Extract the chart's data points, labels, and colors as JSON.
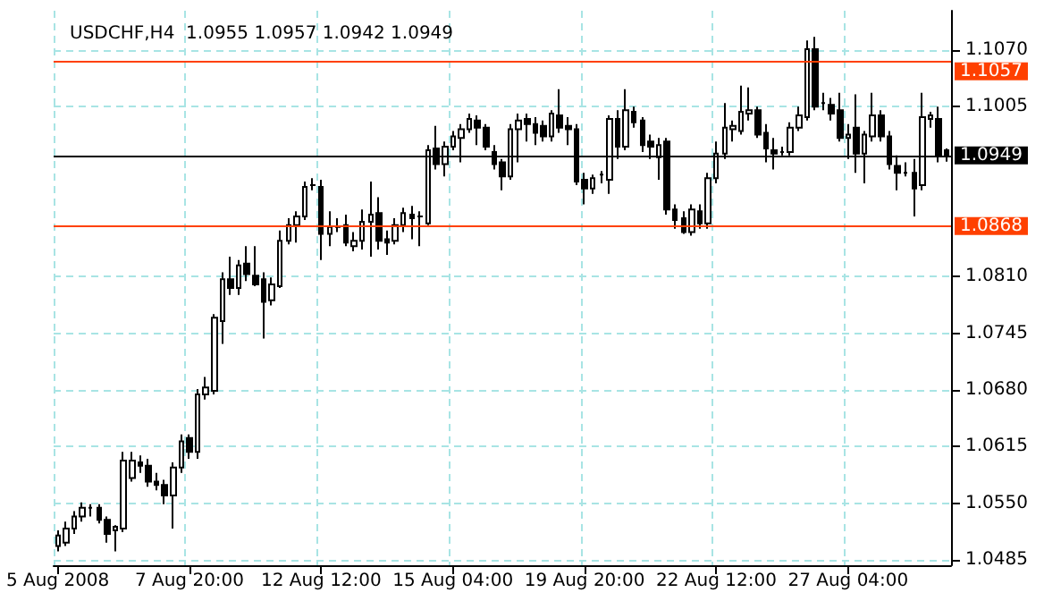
{
  "chart_data": {
    "type": "candlestick",
    "title": "USDCHF,H4  1.0955 1.0957 1.0942 1.0949",
    "color": "#000000",
    "categories": [
      "5 Aug 2008",
      null,
      null,
      null,
      null,
      null,
      null,
      null,
      null,
      null,
      null,
      null,
      null,
      null,
      null,
      null,
      "7 Aug 20:00",
      null,
      null,
      null,
      null,
      null,
      null,
      null,
      null,
      null,
      null,
      null,
      null,
      null,
      null,
      null,
      "12 Aug 12:00",
      null,
      null,
      null,
      null,
      null,
      null,
      null,
      null,
      null,
      null,
      null,
      null,
      null,
      null,
      null,
      "15 Aug 04:00",
      null,
      null,
      null,
      null,
      null,
      null,
      null,
      null,
      null,
      null,
      null,
      null,
      null,
      null,
      null,
      "19 Aug 20:00",
      null,
      null,
      null,
      null,
      null,
      null,
      null,
      null,
      null,
      null,
      null,
      null,
      null,
      null,
      null,
      "22 Aug 12:00",
      null,
      null,
      null,
      null,
      null,
      null,
      null,
      null,
      null,
      null,
      null,
      null,
      null,
      null,
      null,
      "27 Aug 04:00",
      null,
      null,
      null,
      null,
      null,
      null,
      null,
      null,
      null,
      null,
      null,
      null
    ],
    "ohlc": [
      [
        1.0501,
        1.0519,
        1.0495,
        1.0513
      ],
      [
        1.0505,
        1.0529,
        1.0501,
        1.0521
      ],
      [
        1.0521,
        1.0541,
        1.0515,
        1.0535
      ],
      [
        1.0535,
        1.0551,
        1.0529,
        1.0545
      ],
      [
        1.0545,
        1.0549,
        1.0535,
        1.0545
      ],
      [
        1.0545,
        1.0549,
        1.0527,
        1.0531
      ],
      [
        1.0531,
        1.0535,
        1.0505,
        1.0515
      ],
      [
        1.0519,
        1.0525,
        1.0495,
        1.0523
      ],
      [
        1.0521,
        1.0609,
        1.0517,
        1.0599
      ],
      [
        1.0579,
        1.0609,
        1.0575,
        1.0599
      ],
      [
        1.0597,
        1.0605,
        1.0585,
        1.0593
      ],
      [
        1.0593,
        1.0601,
        1.0569,
        1.0575
      ],
      [
        1.0575,
        1.0585,
        1.0565,
        1.0571
      ],
      [
        1.0571,
        1.0577,
        1.0549,
        1.0559
      ],
      [
        1.0559,
        1.0597,
        1.0521,
        1.0591
      ],
      [
        1.0591,
        1.0629,
        1.0585,
        1.0621
      ],
      [
        1.0625,
        1.0629,
        1.0601,
        1.0609
      ],
      [
        1.0609,
        1.0681,
        1.0601,
        1.0675
      ],
      [
        1.0675,
        1.0695,
        1.0669,
        1.0683
      ],
      [
        1.0679,
        1.0767,
        1.0675,
        1.0763
      ],
      [
        1.0759,
        1.0815,
        1.0733,
        1.0807
      ],
      [
        1.0807,
        1.0833,
        1.0789,
        1.0797
      ],
      [
        1.0797,
        1.0829,
        1.0789,
        1.0823
      ],
      [
        1.0825,
        1.0845,
        1.0805,
        1.0813
      ],
      [
        1.0811,
        1.0845,
        1.0799,
        1.0801
      ],
      [
        1.0807,
        1.0815,
        1.0739,
        1.0781
      ],
      [
        1.0783,
        1.0809,
        1.0777,
        1.0801
      ],
      [
        1.0799,
        1.0863,
        1.0797,
        1.0851
      ],
      [
        1.0851,
        1.0877,
        1.0847,
        1.0869
      ],
      [
        1.0869,
        1.0885,
        1.0849,
        1.0879
      ],
      [
        1.0879,
        1.0919,
        1.0875,
        1.0913
      ],
      [
        1.0915,
        1.0923,
        1.0909,
        1.0915
      ],
      [
        1.0913,
        1.0921,
        1.0829,
        1.0859
      ],
      [
        1.0859,
        1.0885,
        1.0845,
        1.0867
      ],
      [
        1.0867,
        1.0877,
        1.0861,
        1.0867
      ],
      [
        1.0869,
        1.0881,
        1.0845,
        1.0849
      ],
      [
        1.0845,
        1.0861,
        1.0839,
        1.0851
      ],
      [
        1.0851,
        1.0887,
        1.0841,
        1.0873
      ],
      [
        1.0873,
        1.0919,
        1.0833,
        1.0881
      ],
      [
        1.0883,
        1.0901,
        1.0841,
        1.0851
      ],
      [
        1.0853,
        1.0863,
        1.0835,
        1.0849
      ],
      [
        1.0851,
        1.0877,
        1.0847,
        1.0869
      ],
      [
        1.0869,
        1.0889,
        1.0861,
        1.0883
      ],
      [
        1.0881,
        1.0891,
        1.0853,
        1.0877
      ],
      [
        1.0879,
        1.0885,
        1.0845,
        1.0879
      ],
      [
        1.0871,
        1.0961,
        1.0869,
        1.0955
      ],
      [
        1.0957,
        1.0983,
        1.0933,
        1.0939
      ],
      [
        1.0939,
        1.0965,
        1.0925,
        1.0959
      ],
      [
        1.0959,
        1.0977,
        1.0955,
        1.0971
      ],
      [
        1.0969,
        1.0985,
        1.0941,
        1.0979
      ],
      [
        1.0979,
        1.0997,
        1.0975,
        1.0991
      ],
      [
        1.0989,
        1.0995,
        1.0961,
        1.0981
      ],
      [
        1.0981,
        1.0985,
        1.0955,
        1.0959
      ],
      [
        1.0953,
        1.0961,
        1.0933,
        1.0939
      ],
      [
        1.0941,
        1.0945,
        1.0909,
        1.0925
      ],
      [
        1.0925,
        1.0985,
        1.0921,
        1.0979
      ],
      [
        1.0979,
        1.0997,
        1.0941,
        1.0989
      ],
      [
        1.0991,
        1.0997,
        1.0965,
        1.0985
      ],
      [
        1.0985,
        1.0993,
        1.0961,
        1.0975
      ],
      [
        1.0983,
        1.0989,
        1.0965,
        1.0971
      ],
      [
        1.0971,
        1.1001,
        1.0965,
        1.0997
      ],
      [
        1.0995,
        1.1025,
        1.0975,
        1.0981
      ],
      [
        1.0983,
        1.0993,
        1.0961,
        1.0979
      ],
      [
        1.0979,
        1.0985,
        1.0915,
        1.0919
      ],
      [
        1.0921,
        1.0929,
        1.0893,
        1.0911
      ],
      [
        1.0911,
        1.0927,
        1.0905,
        1.0923
      ],
      [
        1.0927,
        1.0931,
        1.0917,
        1.0927
      ],
      [
        1.0921,
        1.0995,
        1.0905,
        1.0991
      ],
      [
        1.0991,
        1.1001,
        1.0945,
        1.0959
      ],
      [
        1.0959,
        1.1025,
        1.0955,
        1.1001
      ],
      [
        1.0999,
        1.1005,
        1.0981,
        1.0987
      ],
      [
        1.0989,
        1.0993,
        1.0953,
        1.0961
      ],
      [
        1.0965,
        1.0973,
        1.0945,
        1.0959
      ],
      [
        1.0947,
        1.0969,
        1.0921,
        1.0961
      ],
      [
        1.0965,
        1.0969,
        1.0881,
        1.0887
      ],
      [
        1.0887,
        1.0893,
        1.0865,
        1.0875
      ],
      [
        1.0877,
        1.0885,
        1.0859,
        1.0861
      ],
      [
        1.0861,
        1.0893,
        1.0857,
        1.0887
      ],
      [
        1.0885,
        1.0893,
        1.0865,
        1.0871
      ],
      [
        1.0871,
        1.0929,
        1.0865,
        1.0923
      ],
      [
        1.0923,
        1.0965,
        1.0917,
        1.0951
      ],
      [
        1.0951,
        1.1009,
        1.0945,
        1.0981
      ],
      [
        1.0979,
        1.0989,
        1.0965,
        1.0983
      ],
      [
        1.0977,
        1.1029,
        1.0973,
        1.0999
      ],
      [
        1.0997,
        1.1027,
        1.0989,
        1.1001
      ],
      [
        1.1001,
        1.1005,
        1.0969,
        1.0973
      ],
      [
        1.0975,
        1.0985,
        1.0941,
        1.0957
      ],
      [
        1.0955,
        1.0969,
        1.0933,
        1.0951
      ],
      [
        1.0953,
        1.0959,
        1.0949,
        1.0953
      ],
      [
        1.0953,
        1.0987,
        1.0949,
        1.0981
      ],
      [
        1.0981,
        1.1005,
        1.0977,
        1.0995
      ],
      [
        1.0993,
        1.1081,
        1.0989,
        1.1071
      ],
      [
        1.1071,
        1.1085,
        1.1001,
        1.1005
      ],
      [
        1.1009,
        1.1021,
        1.1001,
        1.1009
      ],
      [
        1.1007,
        1.1015,
        1.0989,
        1.0997
      ],
      [
        1.1001,
        1.1021,
        1.0965,
        1.0969
      ],
      [
        1.0969,
        1.0985,
        1.0945,
        1.0973
      ],
      [
        1.0981,
        1.1019,
        1.0929,
        1.0951
      ],
      [
        1.0951,
        1.0977,
        1.0917,
        1.0973
      ],
      [
        1.0971,
        1.1021,
        1.0965,
        1.0995
      ],
      [
        1.0995,
        1.1001,
        1.0965,
        1.0971
      ],
      [
        1.0971,
        1.0977,
        1.0933,
        1.0939
      ],
      [
        1.0937,
        1.0949,
        1.0909,
        1.0929
      ],
      [
        1.0929,
        1.0941,
        1.0925,
        1.0929
      ],
      [
        1.0929,
        1.0945,
        1.0879,
        1.0911
      ],
      [
        1.0915,
        1.1021,
        1.0909,
        1.0993
      ],
      [
        1.0991,
        1.0999,
        1.0981,
        1.0995
      ],
      [
        1.0991,
        1.1005,
        1.0941,
        1.0949
      ],
      [
        1.0955,
        1.0957,
        1.0942,
        1.0949
      ]
    ],
    "ylim": [
      1.0479,
      1.1115
    ],
    "yticks": [
      1.0485,
      {
        "value": 1.055,
        "label": "1.0550"
      },
      1.0615,
      {
        "value": 1.068,
        "label": "1.0680"
      },
      1.0745,
      {
        "value": 1.081,
        "label": "1.0810"
      },
      1.1005,
      {
        "value": 1.107,
        "label": "1.1070"
      }
    ],
    "ref_lines": [
      {
        "axis": "y",
        "value": 1.1057,
        "label": "1.1057",
        "color": "#ff4000"
      },
      {
        "axis": "y",
        "value": 1.0868,
        "label": "1.0868",
        "color": "#ff4000"
      },
      {
        "axis": "y",
        "value": 1.0949,
        "label": "1.0949",
        "color": "#000000"
      }
    ],
    "grid": true
  }
}
